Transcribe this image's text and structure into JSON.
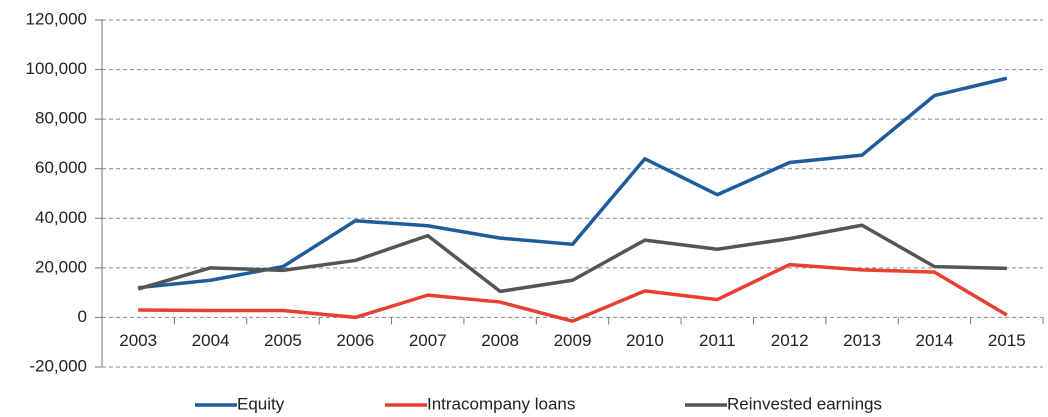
{
  "chart_data": {
    "type": "line",
    "categories": [
      "2003",
      "2004",
      "2005",
      "2006",
      "2007",
      "2008",
      "2009",
      "2010",
      "2011",
      "2012",
      "2013",
      "2014",
      "2015"
    ],
    "series": [
      {
        "name": "Equity",
        "color": "#1f5c9c",
        "values": [
          12000,
          15000,
          20500,
          39000,
          37000,
          32000,
          29500,
          64000,
          49500,
          62500,
          65500,
          89500,
          96500
        ]
      },
      {
        "name": "Intracompany loans",
        "color": "#e8402f",
        "values": [
          3000,
          2800,
          2800,
          0,
          9000,
          6200,
          -1500,
          10700,
          7200,
          21300,
          19200,
          18300,
          1000
        ]
      },
      {
        "name": "Reinvested earnings",
        "color": "#555555",
        "values": [
          11500,
          20000,
          19000,
          23000,
          33000,
          10500,
          15000,
          31200,
          27500,
          31800,
          37200,
          20500,
          19800
        ]
      }
    ],
    "ylim": [
      -20000,
      120000
    ],
    "yticks": [
      {
        "value": -20000,
        "label": "-20,000"
      },
      0,
      {
        "value": 20000,
        "label": "20,000"
      },
      {
        "value": 40000,
        "label": "40,000"
      },
      {
        "value": 60000,
        "label": "60,000"
      },
      {
        "value": 80000,
        "label": "80,000"
      },
      {
        "value": 100000,
        "label": "100,000"
      },
      {
        "value": 120000,
        "label": "120,000"
      }
    ],
    "grid": true,
    "legend": "bottom"
  }
}
